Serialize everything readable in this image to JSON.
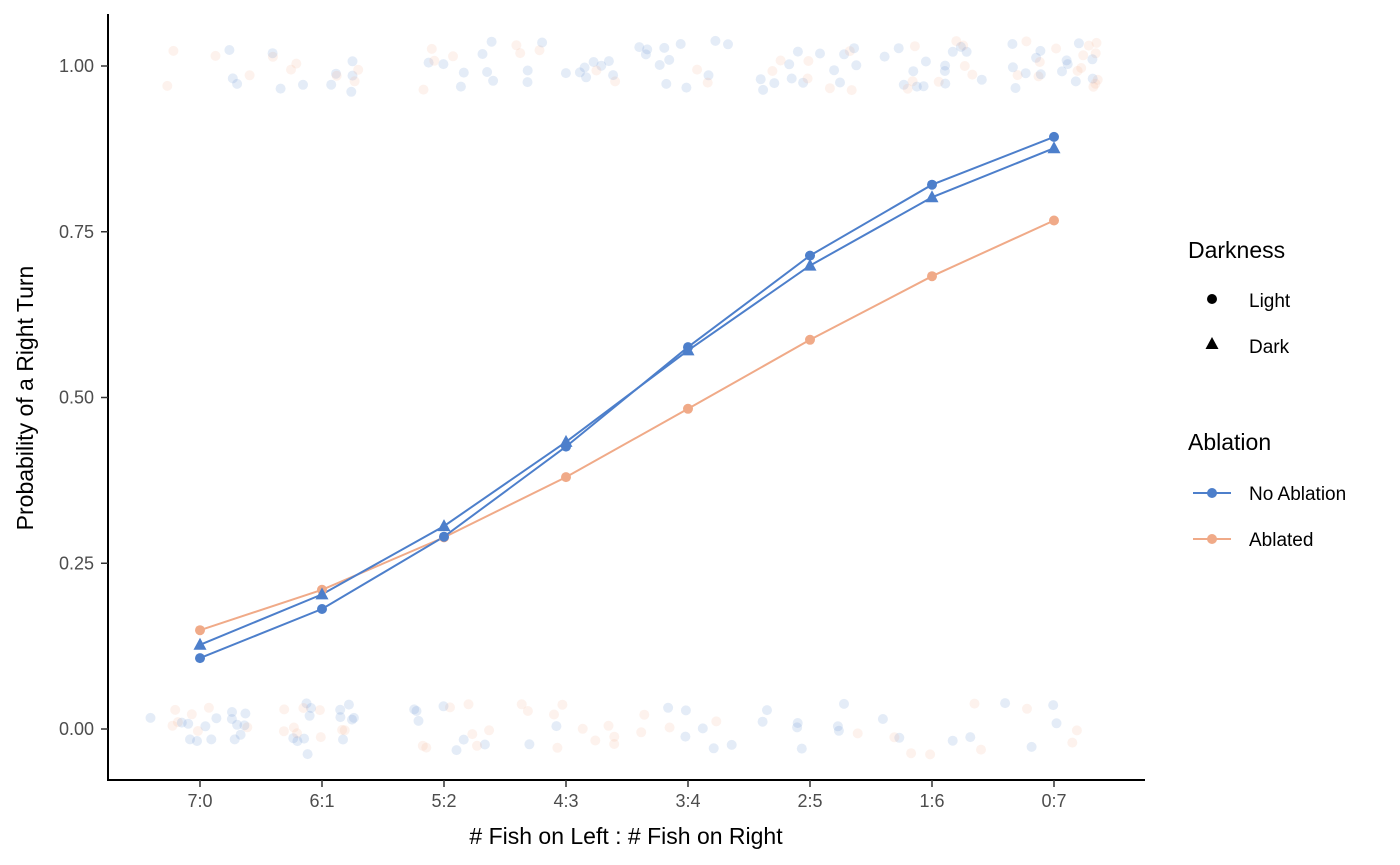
{
  "chart_data": {
    "type": "line",
    "xlabel": "# Fish on Left : # Fish on Right",
    "ylabel": "Probability of a Right Turn",
    "categories": [
      "7:0",
      "6:1",
      "5:2",
      "4:3",
      "3:4",
      "2:5",
      "1:6",
      "0:7"
    ],
    "ylim": [
      -0.07,
      1.08
    ],
    "yticks": [
      0.0,
      0.25,
      0.5,
      0.75,
      1.0
    ],
    "ytick_labels": [
      "0.00",
      "0.25",
      "0.50",
      "0.75",
      "1.00"
    ],
    "grid": false,
    "legend_placement": "right",
    "colors": {
      "No Ablation": "#4d7fcb",
      "Ablated": "#f0aa88"
    },
    "legends": {
      "darkness": {
        "title": "Darkness",
        "entries": [
          "Light",
          "Dark"
        ]
      },
      "ablation": {
        "title": "Ablation",
        "entries": [
          "No Ablation",
          "Ablated"
        ]
      }
    },
    "series": [
      {
        "ablation": "No Ablation",
        "darkness": "Light",
        "shape": "circle",
        "values": [
          0.107,
          0.181,
          0.29,
          0.426,
          0.576,
          0.714,
          0.821,
          0.893
        ]
      },
      {
        "ablation": "No Ablation",
        "darkness": "Dark",
        "shape": "triangle",
        "values": [
          0.127,
          0.203,
          0.306,
          0.433,
          0.571,
          0.699,
          0.802,
          0.876
        ]
      },
      {
        "ablation": "Ablated",
        "darkness": "Light",
        "shape": "circle",
        "values": [
          0.149,
          0.21,
          0.289,
          0.38,
          0.483,
          0.587,
          0.683,
          0.767
        ]
      }
    ],
    "raw_observations": {
      "description": "jittered binary outcomes (0 = left turn, 1 = right turn), faint points",
      "opacity": 0.15
    }
  }
}
